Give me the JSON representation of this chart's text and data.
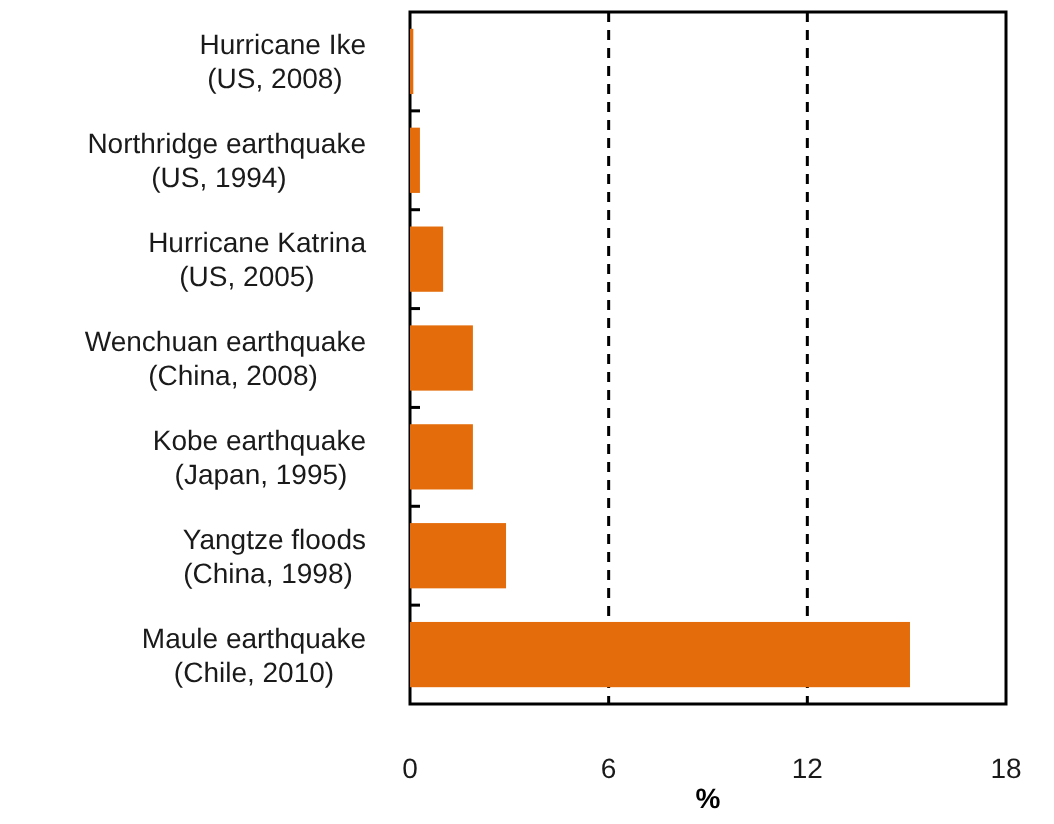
{
  "chart_data": {
    "type": "bar",
    "orientation": "horizontal",
    "xlabel": "%",
    "categories": [
      "Hurricane Ike\n(US, 2008)",
      "Northridge earthquake\n(US, 1994)",
      "Hurricane Katrina\n(US, 2005)",
      "Wenchuan earthquake\n(China, 2008)",
      "Kobe earthquake\n(Japan, 1995)",
      "Yangtze floods\n(China, 1998)",
      "Maule earthquake\n(Chile, 2010)"
    ],
    "values": [
      0.1,
      0.3,
      1.0,
      1.9,
      1.9,
      2.9,
      15.1
    ],
    "color": "#e46c0a",
    "xlim": [
      0,
      18
    ],
    "xticks": [
      0,
      6,
      12,
      18
    ],
    "grid": "x"
  }
}
